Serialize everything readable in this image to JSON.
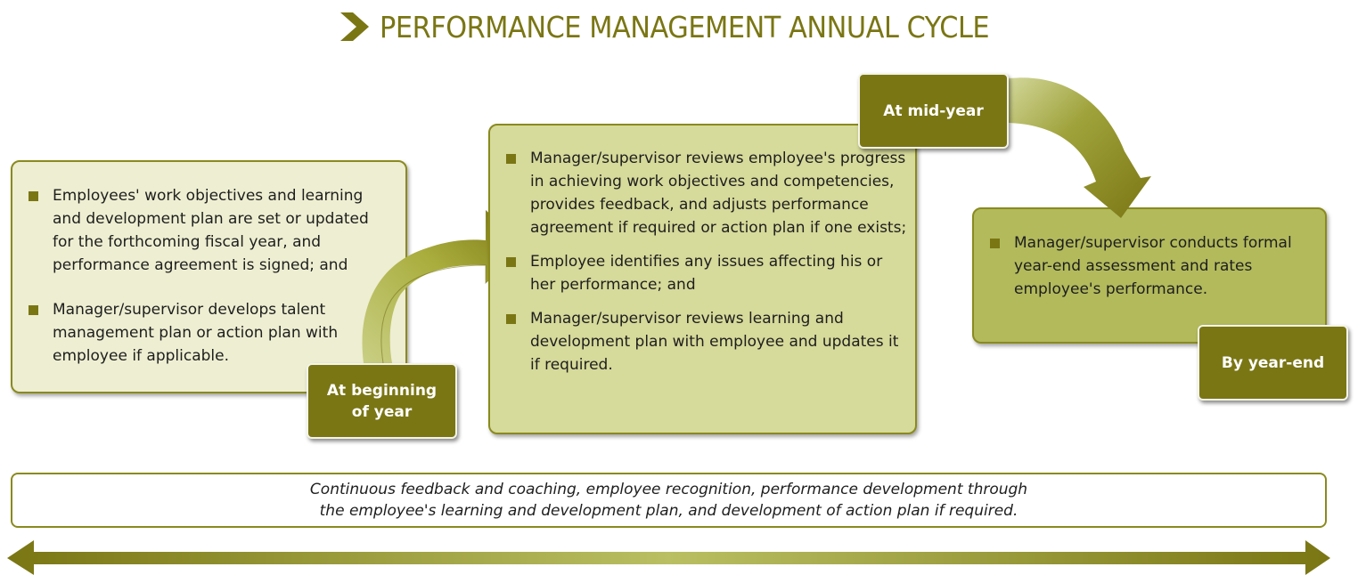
{
  "title": "PERFORMANCE MANAGEMENT ANNUAL CYCLE",
  "colors": {
    "dark_olive": "#7a7614",
    "box1_fill": "#eeeed2",
    "box2_fill": "#d6da9a",
    "box3_fill": "#b2ba5c",
    "border": "#8a8a1f"
  },
  "icons": {
    "title": "chevron-right-icon",
    "bullet": "square-bullet-icon",
    "timeline": "double-headed-arrow-icon"
  },
  "stages": [
    {
      "label": "At beginning of year",
      "bullets": [
        "Employees' work objectives and learning and development plan are set or updated for the forthcoming fiscal year, and performance agreement is signed; and",
        "Manager/supervisor develops talent management plan or action plan with employee if applicable."
      ]
    },
    {
      "label": "At mid-year",
      "bullets": [
        "Manager/supervisor reviews employee's progress in achieving work objectives and competencies, provides feedback, and adjusts performance agreement if required or action plan if one exists;",
        "Employee identifies any issues affecting his or her performance; and",
        "Manager/supervisor reviews learning and development plan with employee and updates it if required."
      ]
    },
    {
      "label": "By year-end",
      "bullets": [
        "Manager/supervisor conducts formal year-end assessment and rates employee's performance."
      ]
    }
  ],
  "continuous_note": {
    "line1": "Continuous feedback and coaching, employee recognition, performance development through",
    "line2": "the employee's learning and development plan, and development of action plan if required."
  }
}
